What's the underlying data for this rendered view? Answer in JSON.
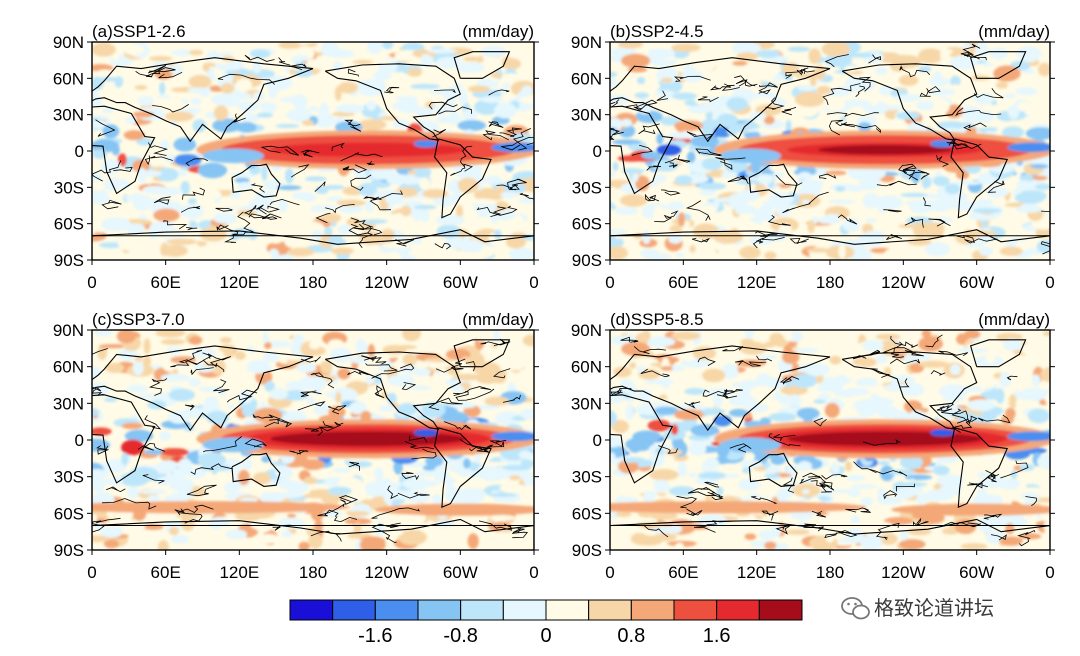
{
  "chart_data": {
    "type": "heatmap",
    "units": "(mm/day)",
    "lat_ticks": [
      "90N",
      "60N",
      "30N",
      "0",
      "30S",
      "60S",
      "90S"
    ],
    "lon_ticks": [
      "0",
      "60E",
      "120E",
      "180",
      "120W",
      "60W",
      "0"
    ],
    "panels": [
      {
        "title": "(a)SSP1-2.6",
        "units": "(mm/day)",
        "tropical_pacific_max": 1.6
      },
      {
        "title": "(b)SSP2-4.5",
        "units": "(mm/day)",
        "tropical_pacific_max": 1.8
      },
      {
        "title": "(c)SSP3-7.0",
        "units": "(mm/day)",
        "tropical_pacific_max": 2.0
      },
      {
        "title": "(d)SSP5-8.5",
        "units": "(mm/day)",
        "tropical_pacific_max": 2.0
      }
    ],
    "colorbar": {
      "colors": [
        "#1a0fd6",
        "#2f5fe6",
        "#4a8ef0",
        "#86c4f4",
        "#bde6fa",
        "#e6f7fd",
        "#fffbe6",
        "#f7d7a8",
        "#f4a878",
        "#ee5040",
        "#e52a2f",
        "#a50d1a"
      ],
      "tick_labels": [
        "-1.6",
        "-0.8",
        "0",
        "0.8",
        "1.6"
      ],
      "tick_values": [
        -1.6,
        -0.8,
        0,
        0.8,
        1.6
      ],
      "levels": [
        -2.0,
        -1.6,
        -1.2,
        -0.8,
        -0.4,
        0,
        0.4,
        0.8,
        1.2,
        1.6,
        2.0
      ]
    }
  },
  "watermark": "格致论道讲坛",
  "watermark_icon": "wechat-icon"
}
